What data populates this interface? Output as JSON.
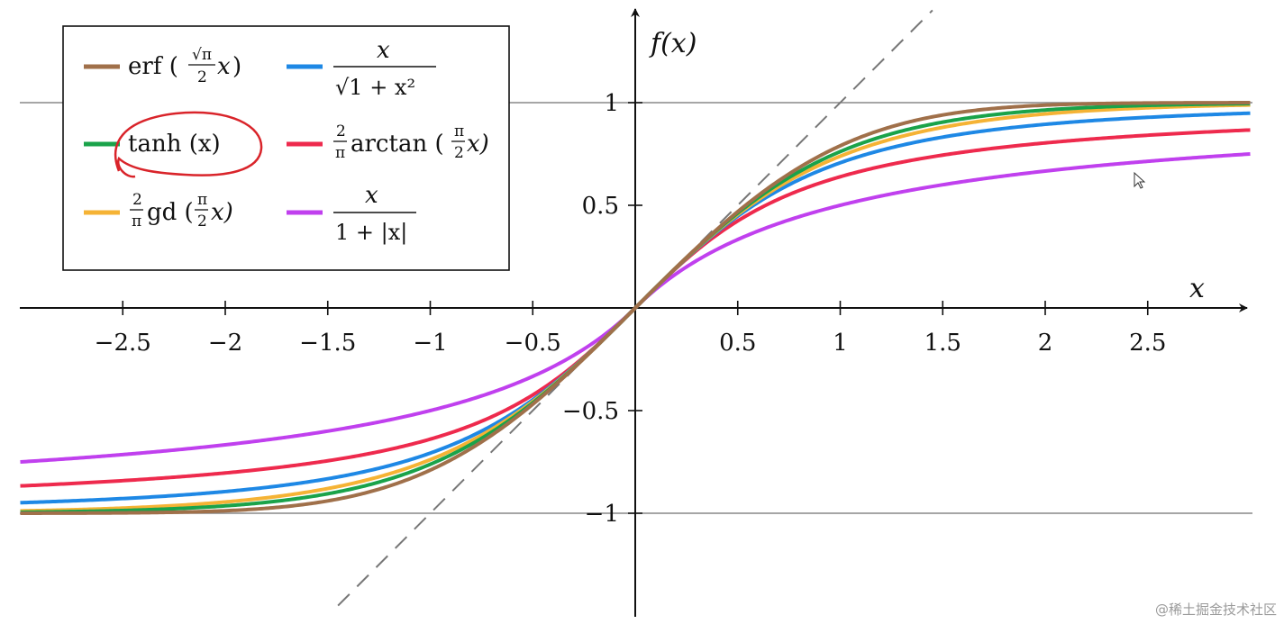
{
  "chart_data": {
    "type": "line",
    "xlabel": "x",
    "ylabel": "f(x)",
    "xlim": [
      -3.0,
      3.0
    ],
    "ylim": [
      -1.5,
      1.5
    ],
    "x_ticks": [
      -2.5,
      -2,
      -1.5,
      -1,
      -0.5,
      0.5,
      1,
      1.5,
      2,
      2.5
    ],
    "x_tick_labels": [
      "−2.5",
      "−2",
      "−1.5",
      "−1",
      "−0.5",
      "0.5",
      "1",
      "1.5",
      "2",
      "2.5"
    ],
    "y_ticks": [
      1,
      0.5,
      -0.5,
      -1
    ],
    "y_tick_labels": [
      "1",
      "0.5",
      "−0.5",
      "−1"
    ],
    "reference_lines": [
      {
        "kind": "hline",
        "y": 1,
        "color": "#888888"
      },
      {
        "kind": "hline",
        "y": -1,
        "color": "#888888"
      },
      {
        "kind": "diagonal-dashed",
        "slope": 1,
        "color": "#777777"
      }
    ],
    "legend_position": "top-left",
    "series": [
      {
        "name": "erf(√π/2 · x)",
        "function": "erf",
        "color": "#a0704a",
        "x": [
          -3,
          -2.5,
          -2,
          -1.5,
          -1,
          -0.5,
          0,
          0.5,
          1,
          1.5,
          2,
          2.5,
          3
        ],
        "values": [
          -1.0,
          -0.9999,
          -0.9964,
          -0.9772,
          -0.8224,
          -0.4579,
          0,
          0.4579,
          0.8224,
          0.9772,
          0.9964,
          0.9999,
          1.0
        ]
      },
      {
        "name": "x / √(1 + x²)",
        "function": "algebraic",
        "color": "#1e88e5",
        "x": [
          -3,
          -2.5,
          -2,
          -1.5,
          -1,
          -0.5,
          0,
          0.5,
          1,
          1.5,
          2,
          2.5,
          3
        ],
        "values": [
          -0.9487,
          -0.9285,
          -0.8944,
          -0.8321,
          -0.7071,
          -0.4472,
          0,
          0.4472,
          0.7071,
          0.8321,
          0.8944,
          0.9285,
          0.9487
        ]
      },
      {
        "name": "tanh(x)",
        "function": "tanh",
        "color": "#1aa34a",
        "x": [
          -3,
          -2.5,
          -2,
          -1.5,
          -1,
          -0.5,
          0,
          0.5,
          1,
          1.5,
          2,
          2.5,
          3
        ],
        "values": [
          -0.9951,
          -0.9866,
          -0.964,
          -0.9051,
          -0.7616,
          -0.4621,
          0,
          0.4621,
          0.7616,
          0.9051,
          0.964,
          0.9866,
          0.9951
        ]
      },
      {
        "name": "2/π · arctan(π/2 · x)",
        "function": "arctan",
        "color": "#ee2a4d",
        "x": [
          -3,
          -2.5,
          -2,
          -1.5,
          -1,
          -0.5,
          0,
          0.5,
          1,
          1.5,
          2,
          2.5,
          3
        ],
        "values": [
          -0.8668,
          -0.8426,
          -0.8069,
          -0.7478,
          -0.6302,
          -0.4272,
          0,
          0.4272,
          0.6302,
          0.7478,
          0.8069,
          0.8426,
          0.8668
        ]
      },
      {
        "name": "2/π · gd(π/2 · x)",
        "function": "gd",
        "color": "#f5b335",
        "x": [
          -3,
          -2.5,
          -2,
          -1.5,
          -1,
          -0.5,
          0,
          0.5,
          1,
          1.5,
          2,
          2.5,
          3
        ],
        "values": [
          -0.9944,
          -0.9876,
          -0.9725,
          -0.9389,
          -0.8296,
          -0.4766,
          0,
          0.4766,
          0.8296,
          0.9389,
          0.9725,
          0.9876,
          0.9944
        ]
      },
      {
        "name": "x / (1 + |x|)",
        "function": "softsign",
        "color": "#c040ee",
        "x": [
          -3,
          -2.5,
          -2,
          -1.5,
          -1,
          -0.5,
          0,
          0.5,
          1,
          1.5,
          2,
          2.5,
          3
        ],
        "values": [
          -0.75,
          -0.7143,
          -0.6667,
          -0.6,
          -0.5,
          -0.3333,
          0,
          0.3333,
          0.5,
          0.6,
          0.6667,
          0.7143,
          0.75
        ]
      }
    ],
    "annotation": {
      "kind": "hand-drawn-circle",
      "around": "tanh(x)",
      "color": "#d9242a"
    }
  },
  "legend_labels": {
    "erf": {
      "a": "erf",
      "frac_num": "√π",
      "frac_den": "2",
      "b": "x"
    },
    "algebraic": {
      "num": "x",
      "den": "√1 + x²"
    },
    "tanh": {
      "text": "tanh (x)"
    },
    "arctan": {
      "frac_num": "2",
      "frac_den": "π",
      "a": "arctan (",
      "frac2_num": "π",
      "frac2_den": "2",
      "b": "x)"
    },
    "gd": {
      "frac_num": "2",
      "frac_den": "π",
      "a": "gd (",
      "frac2_num": "π",
      "frac2_den": "2",
      "b": "x)"
    },
    "softsign": {
      "num": "x",
      "den": "1 + |x|"
    }
  },
  "watermark": "@稀土掘金技术社区"
}
